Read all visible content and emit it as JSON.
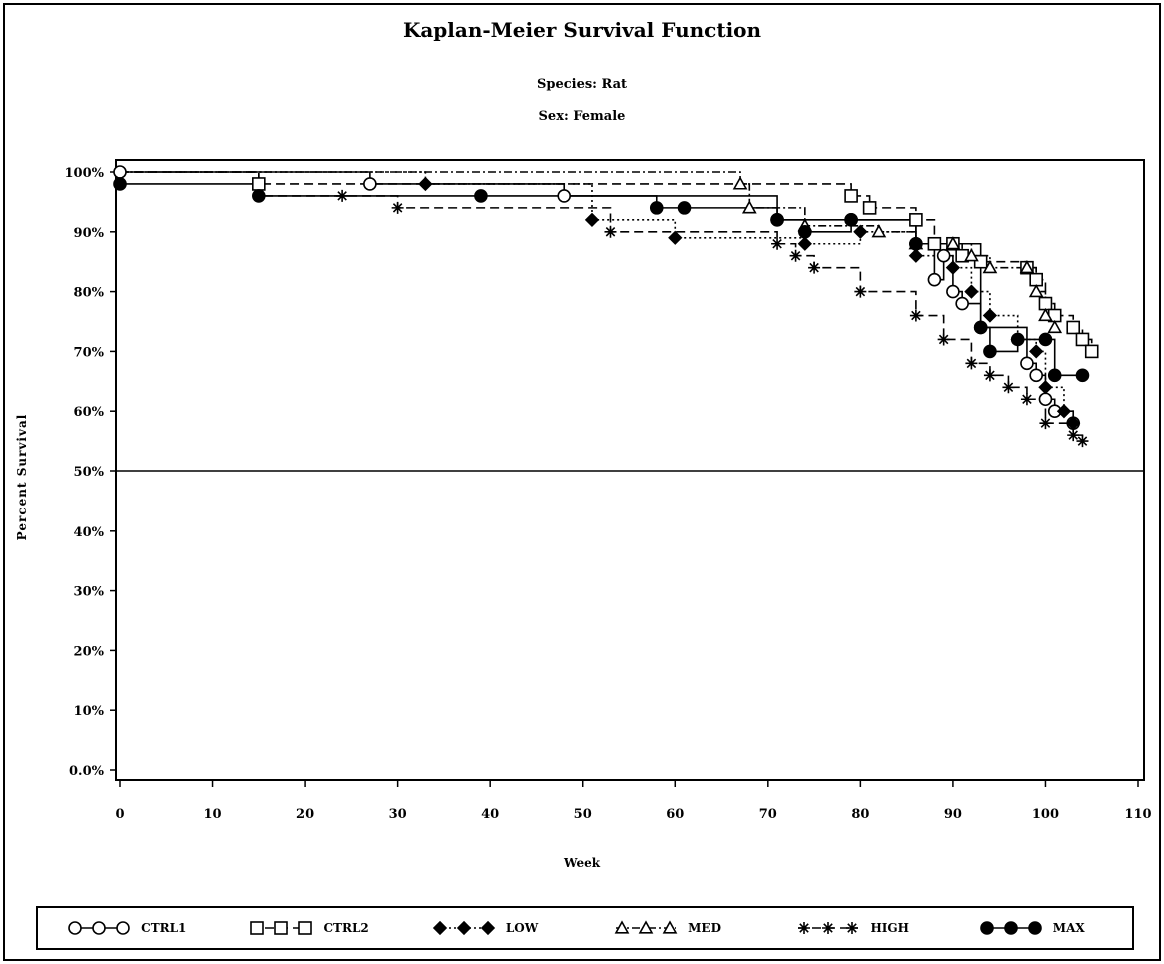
{
  "chart_data": {
    "type": "line",
    "step": true,
    "title": "Kaplan-Meier Survival Function",
    "subtitle_lines": [
      "Species: Rat",
      "Sex: Female"
    ],
    "xlabel": "Week",
    "ylabel": "Percent Survival",
    "xlim": [
      0,
      110
    ],
    "ylim": [
      0,
      100
    ],
    "x_ticks": [
      0,
      10,
      20,
      30,
      40,
      50,
      60,
      70,
      80,
      90,
      100,
      110
    ],
    "x_tick_labels": [
      "0",
      "10",
      "20",
      "30",
      "40",
      "50",
      "60",
      "70",
      "80",
      "90",
      "100",
      "110"
    ],
    "y_ticks": [
      0,
      10,
      20,
      30,
      40,
      50,
      60,
      70,
      80,
      90,
      100
    ],
    "y_tick_labels": [
      "0.0%",
      "10%",
      "20%",
      "30%",
      "40%",
      "50%",
      "60%",
      "70%",
      "80%",
      "90%",
      "100%"
    ],
    "reference_line_y": 50,
    "legend_position": "bottom",
    "series": [
      {
        "name": "CTRL1",
        "marker": "circle",
        "dash": "solid",
        "color": "#000000",
        "points": [
          [
            0,
            100
          ],
          [
            27,
            98
          ],
          [
            48,
            96
          ],
          [
            71,
            92
          ],
          [
            79,
            92
          ],
          [
            86,
            88
          ],
          [
            88,
            82
          ],
          [
            89,
            86
          ],
          [
            90,
            80
          ],
          [
            91,
            78
          ],
          [
            93,
            74
          ],
          [
            98,
            68
          ],
          [
            99,
            66
          ],
          [
            100,
            62
          ],
          [
            101,
            60
          ],
          [
            103,
            58
          ]
        ]
      },
      {
        "name": "CTRL2",
        "marker": "square",
        "dash": "dashed",
        "color": "#000000",
        "points": [
          [
            0,
            100
          ],
          [
            15,
            98
          ],
          [
            79,
            96
          ],
          [
            81,
            94
          ],
          [
            86,
            92
          ],
          [
            88,
            88
          ],
          [
            90,
            88
          ],
          [
            91,
            86
          ],
          [
            93,
            85
          ],
          [
            98,
            84
          ],
          [
            99,
            82
          ],
          [
            100,
            78
          ],
          [
            101,
            76
          ],
          [
            103,
            74
          ],
          [
            104,
            72
          ],
          [
            105,
            70
          ]
        ]
      },
      {
        "name": "LOW",
        "marker": "diamond",
        "dash": "dotted",
        "color": "#000000",
        "points": [
          [
            0,
            100
          ],
          [
            33,
            98
          ],
          [
            51,
            92
          ],
          [
            60,
            89
          ],
          [
            74,
            88
          ],
          [
            80,
            90
          ],
          [
            86,
            86
          ],
          [
            90,
            84
          ],
          [
            92,
            80
          ],
          [
            94,
            76
          ],
          [
            97,
            72
          ],
          [
            99,
            70
          ],
          [
            100,
            64
          ],
          [
            102,
            60
          ],
          [
            103,
            58
          ]
        ]
      },
      {
        "name": "MED",
        "marker": "triangle",
        "dash": "dashdot",
        "color": "#000000",
        "points": [
          [
            0,
            100
          ],
          [
            67,
            98
          ],
          [
            68,
            94
          ],
          [
            74,
            91
          ],
          [
            82,
            90
          ],
          [
            86,
            88
          ],
          [
            90,
            88
          ],
          [
            92,
            86
          ],
          [
            94,
            84
          ],
          [
            98,
            84
          ],
          [
            99,
            80
          ],
          [
            100,
            76
          ],
          [
            101,
            74
          ]
        ]
      },
      {
        "name": "HIGH",
        "marker": "star",
        "dash": "dashed",
        "color": "#000000",
        "points": [
          [
            0,
            100
          ],
          [
            15,
            96
          ],
          [
            24,
            96
          ],
          [
            30,
            94
          ],
          [
            53,
            90
          ],
          [
            71,
            88
          ],
          [
            73,
            86
          ],
          [
            75,
            84
          ],
          [
            80,
            80
          ],
          [
            86,
            76
          ],
          [
            89,
            72
          ],
          [
            92,
            68
          ],
          [
            94,
            66
          ],
          [
            96,
            64
          ],
          [
            98,
            62
          ],
          [
            100,
            58
          ],
          [
            103,
            56
          ],
          [
            104,
            55
          ]
        ]
      },
      {
        "name": "MAX",
        "marker": "filled-circle",
        "dash": "solid",
        "color": "#000000",
        "points": [
          [
            0,
            98
          ],
          [
            15,
            96
          ],
          [
            39,
            96
          ],
          [
            58,
            94
          ],
          [
            61,
            94
          ],
          [
            71,
            92
          ],
          [
            74,
            90
          ],
          [
            79,
            92
          ],
          [
            86,
            88
          ],
          [
            93,
            74
          ],
          [
            94,
            70
          ],
          [
            97,
            72
          ],
          [
            100,
            72
          ],
          [
            101,
            66
          ],
          [
            104,
            66
          ]
        ]
      }
    ]
  }
}
